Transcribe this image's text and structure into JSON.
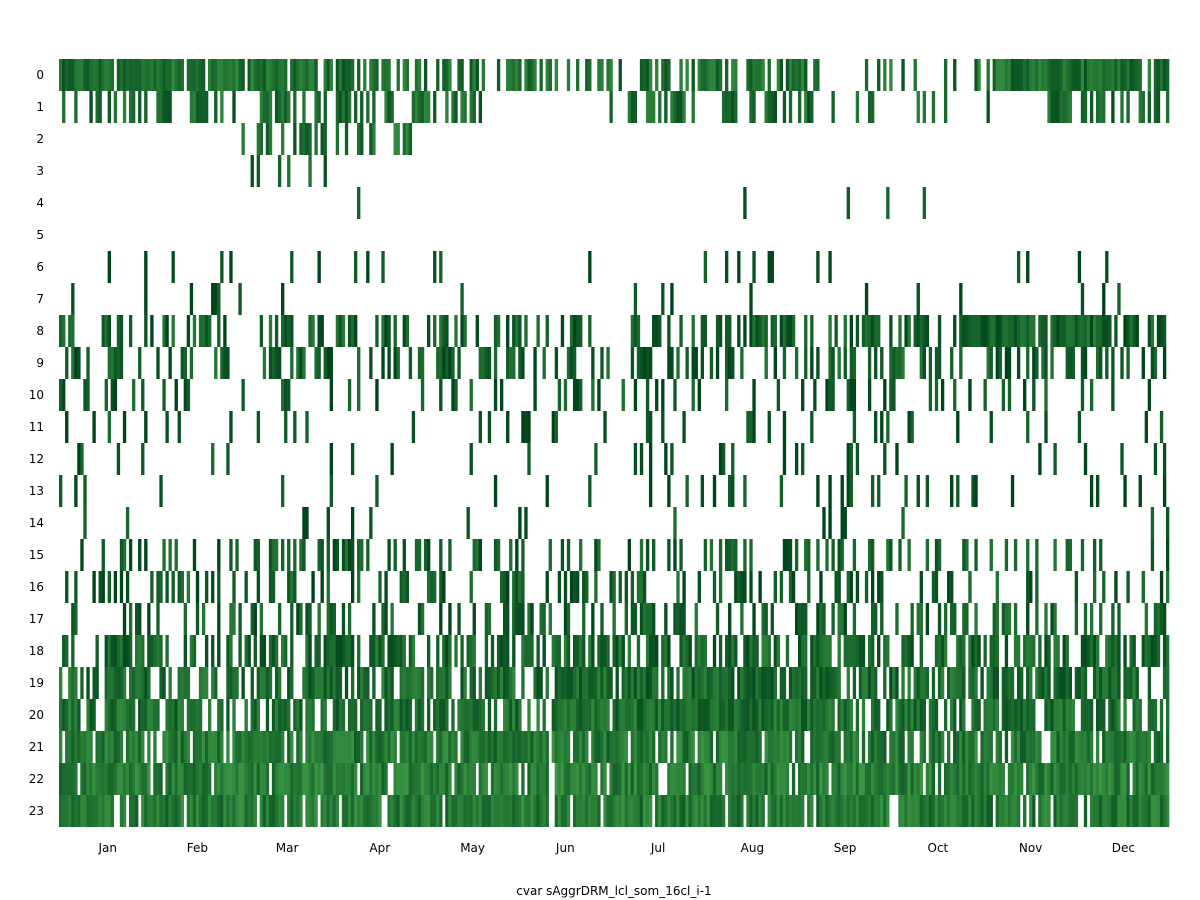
{
  "chart_data": {
    "type": "heatmap",
    "title": "",
    "xlabel": "cvar sAggrDRM_lcl_som_16cl_i-1",
    "ylabel": "",
    "y_categories": [
      "0",
      "1",
      "2",
      "3",
      "4",
      "5",
      "6",
      "7",
      "8",
      "9",
      "10",
      "11",
      "12",
      "13",
      "14",
      "15",
      "16",
      "17",
      "18",
      "19",
      "20",
      "21",
      "22",
      "23"
    ],
    "x_tick_labels": [
      "Jan",
      "Feb",
      "Mar",
      "Apr",
      "May",
      "Jun",
      "Jul",
      "Aug",
      "Sep",
      "Oct",
      "Nov",
      "Dec"
    ],
    "xlim": [
      1,
      365
    ],
    "grid": false,
    "legend": "none",
    "colors": {
      "dark": "#00441b",
      "mid": "#1a6e2e",
      "light": "#41a048",
      "background": "#ffffff"
    },
    "row_density": [
      0.62,
      0.48,
      0.08,
      0.02,
      0.01,
      0.0,
      0.06,
      0.05,
      0.42,
      0.35,
      0.2,
      0.1,
      0.07,
      0.1,
      0.06,
      0.28,
      0.3,
      0.38,
      0.55,
      0.68,
      0.72,
      0.86,
      0.92,
      0.9
    ],
    "row_intensity": [
      0.55,
      0.6,
      0.55,
      0.7,
      0.9,
      0.0,
      0.9,
      0.9,
      0.7,
      0.75,
      0.8,
      0.85,
      0.9,
      0.9,
      0.85,
      0.75,
      0.75,
      0.7,
      0.65,
      0.6,
      0.55,
      0.45,
      0.4,
      0.45
    ]
  }
}
